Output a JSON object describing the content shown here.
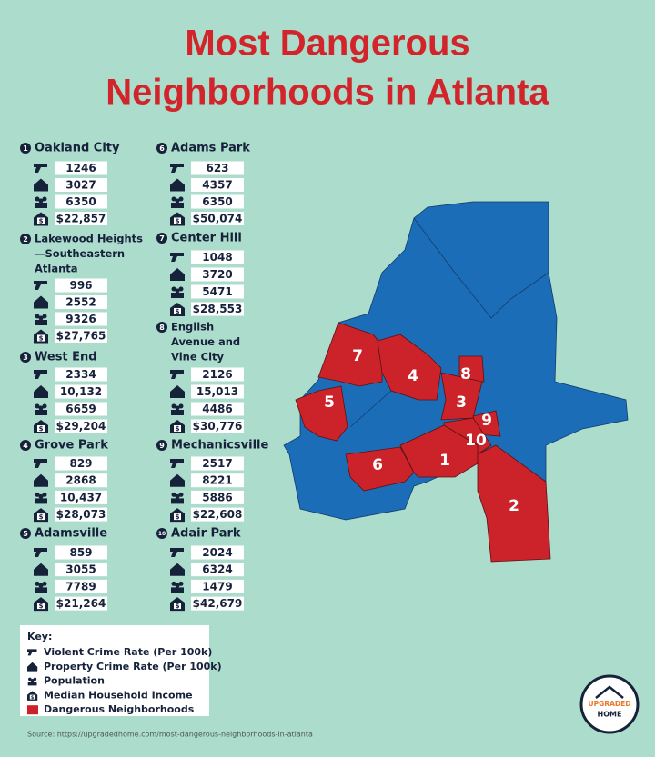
{
  "title_lines": [
    "Most Dangerous",
    "Neighborhoods in Atlanta"
  ],
  "neighborhoods": [
    {
      "rank": "1",
      "name_lines": [
        "Oakland City"
      ],
      "violent_crime": "1246",
      "property_crime": "3027",
      "population": "6350",
      "median_income": "$22,857"
    },
    {
      "rank": "2",
      "name_lines": [
        "Lakewood Heights",
        "—Southeastern",
        "Atlanta"
      ],
      "violent_crime": "996",
      "property_crime": "2552",
      "population": "9326",
      "median_income": "$27,765"
    },
    {
      "rank": "3",
      "name_lines": [
        "West End"
      ],
      "violent_crime": "2334",
      "property_crime": "10,132",
      "population": "6659",
      "median_income": "$29,204"
    },
    {
      "rank": "4",
      "name_lines": [
        "Grove Park"
      ],
      "violent_crime": "829",
      "property_crime": "2868",
      "population": "10,437",
      "median_income": "$28,073"
    },
    {
      "rank": "5",
      "name_lines": [
        "Adamsville"
      ],
      "violent_crime": "859",
      "property_crime": "3055",
      "population": "7789",
      "median_income": "$21,264"
    },
    {
      "rank": "6",
      "name_lines": [
        "Adams Park"
      ],
      "violent_crime": "623",
      "property_crime": "4357",
      "population": "6350",
      "median_income": "$50,074"
    },
    {
      "rank": "7",
      "name_lines": [
        "Center Hill"
      ],
      "violent_crime": "1048",
      "property_crime": "3720",
      "population": "5471",
      "median_income": "$28,553"
    },
    {
      "rank": "8",
      "name_lines": [
        "English",
        "Avenue and",
        "Vine City"
      ],
      "violent_crime": "2126",
      "property_crime": "15,013",
      "population": "4486",
      "median_income": "$30,776"
    },
    {
      "rank": "9",
      "name_lines": [
        "Mechanicsville"
      ],
      "violent_crime": "2517",
      "property_crime": "8221",
      "population": "5886",
      "median_income": "$22,608"
    },
    {
      "rank": "10",
      "name_lines": [
        "Adair Park"
      ],
      "violent_crime": "2024",
      "property_crime": "6324",
      "population": "1479",
      "median_income": "$42,679"
    }
  ],
  "key": {
    "title": "Key:",
    "items": [
      "Violent Crime Rate (Per 100k)",
      "Property Crime Rate (Per 100k)",
      "Population",
      "Median Household Income",
      "Dangerous Neighborhoods"
    ]
  },
  "source": "Source: https://upgradedhome.com/most-dangerous-neighborhoods-in-atlanta",
  "logo_lines": [
    "UPGRADED",
    "HOME"
  ]
}
